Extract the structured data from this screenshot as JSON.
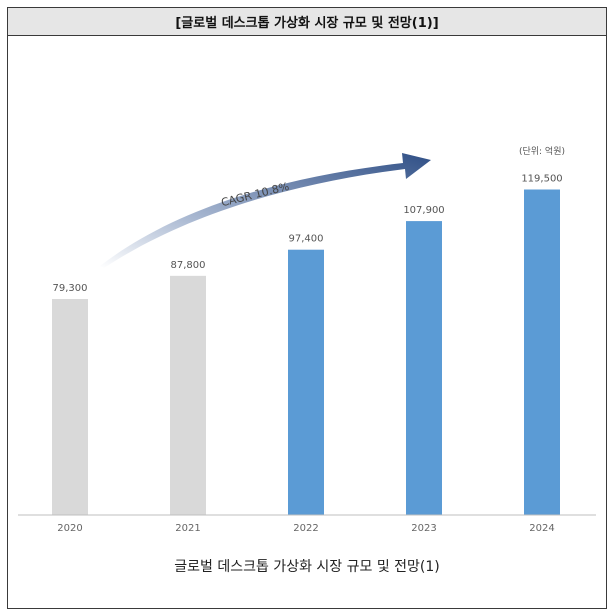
{
  "header": {
    "title": "[글로벌 데스크톱 가상화 시장 규모 및 전망(1)]"
  },
  "caption": "글로벌 데스크톱 가상화 시장 규모 및 전망(1)",
  "colors": {
    "forecast": "#5b9bd5",
    "actual": "#d9d9d9",
    "arrow_end": "#2f4f86",
    "axis": "#bfbfbf",
    "label": "#555555"
  },
  "chart_data": {
    "type": "bar",
    "title": "",
    "unit_note": "(단위: 억원)",
    "categories": [
      "2020",
      "2021",
      "2022",
      "2023",
      "2024"
    ],
    "values": [
      79300,
      87800,
      97400,
      107900,
      119500
    ],
    "value_labels": [
      "79,300",
      "87,800",
      "97,400",
      "107,900",
      "119,500"
    ],
    "bar_colors": [
      "#d9d9d9",
      "#d9d9d9",
      "#5b9bd5",
      "#5b9bd5",
      "#5b9bd5"
    ],
    "annotation": "CAGR 10.8%",
    "xlabel": "",
    "ylabel": "",
    "ylim": [
      0,
      130000
    ],
    "grid": false
  }
}
